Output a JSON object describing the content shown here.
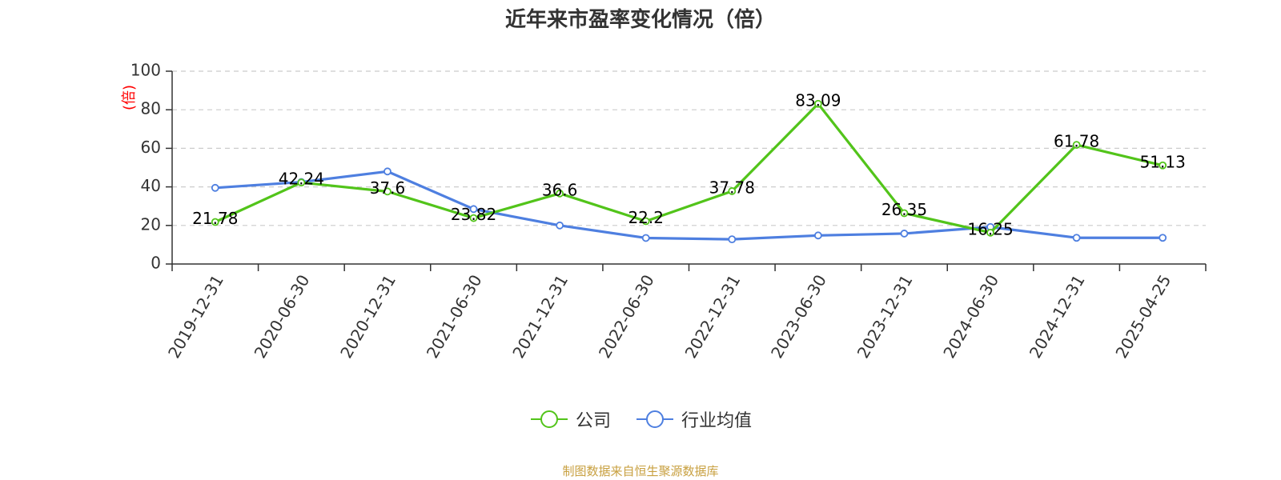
{
  "title": "近年来市盈率变化情况（倍）",
  "source_note": "制图数据来自恒生聚源数据库",
  "colors": {
    "company": "#52c41a",
    "industry": "#4e7fe0",
    "unit": "#ff0000",
    "source": "#c8a040",
    "grid": "#cccccc",
    "axis": "#333333"
  },
  "chart_data": {
    "type": "line",
    "title": "近年来市盈率变化情况（倍）",
    "xlabel": "",
    "ylabel": "(倍)",
    "ylim": [
      0,
      100
    ],
    "yticks": [
      0,
      20,
      40,
      60,
      80,
      100
    ],
    "grid": true,
    "legend_position": "bottom-center",
    "categories": [
      "2019-12-31",
      "2020-06-30",
      "2020-12-31",
      "2021-06-30",
      "2021-12-31",
      "2022-06-30",
      "2022-12-31",
      "2023-06-30",
      "2023-12-31",
      "2024-06-30",
      "2024-12-31",
      "2025-04-25"
    ],
    "series": [
      {
        "name": "公司",
        "color": "#52c41a",
        "values": [
          21.78,
          42.24,
          37.6,
          23.82,
          36.6,
          22.2,
          37.78,
          83.09,
          26.35,
          16.25,
          61.78,
          51.13
        ],
        "labels": [
          "21.78",
          "42.24",
          "37.6",
          "23.82",
          "36.6",
          "22.2",
          "37.78",
          "83.09",
          "26.35",
          "16.25",
          "61.78",
          "51.13"
        ]
      },
      {
        "name": "行业均值",
        "color": "#4e7fe0",
        "values": [
          39.5,
          42.5,
          48,
          28.5,
          20,
          13.5,
          12.8,
          14.8,
          15.8,
          19.2,
          13.6,
          13.6
        ]
      }
    ]
  },
  "legend": [
    {
      "label": "公司",
      "color": "#52c41a"
    },
    {
      "label": "行业均值",
      "color": "#4e7fe0"
    }
  ]
}
